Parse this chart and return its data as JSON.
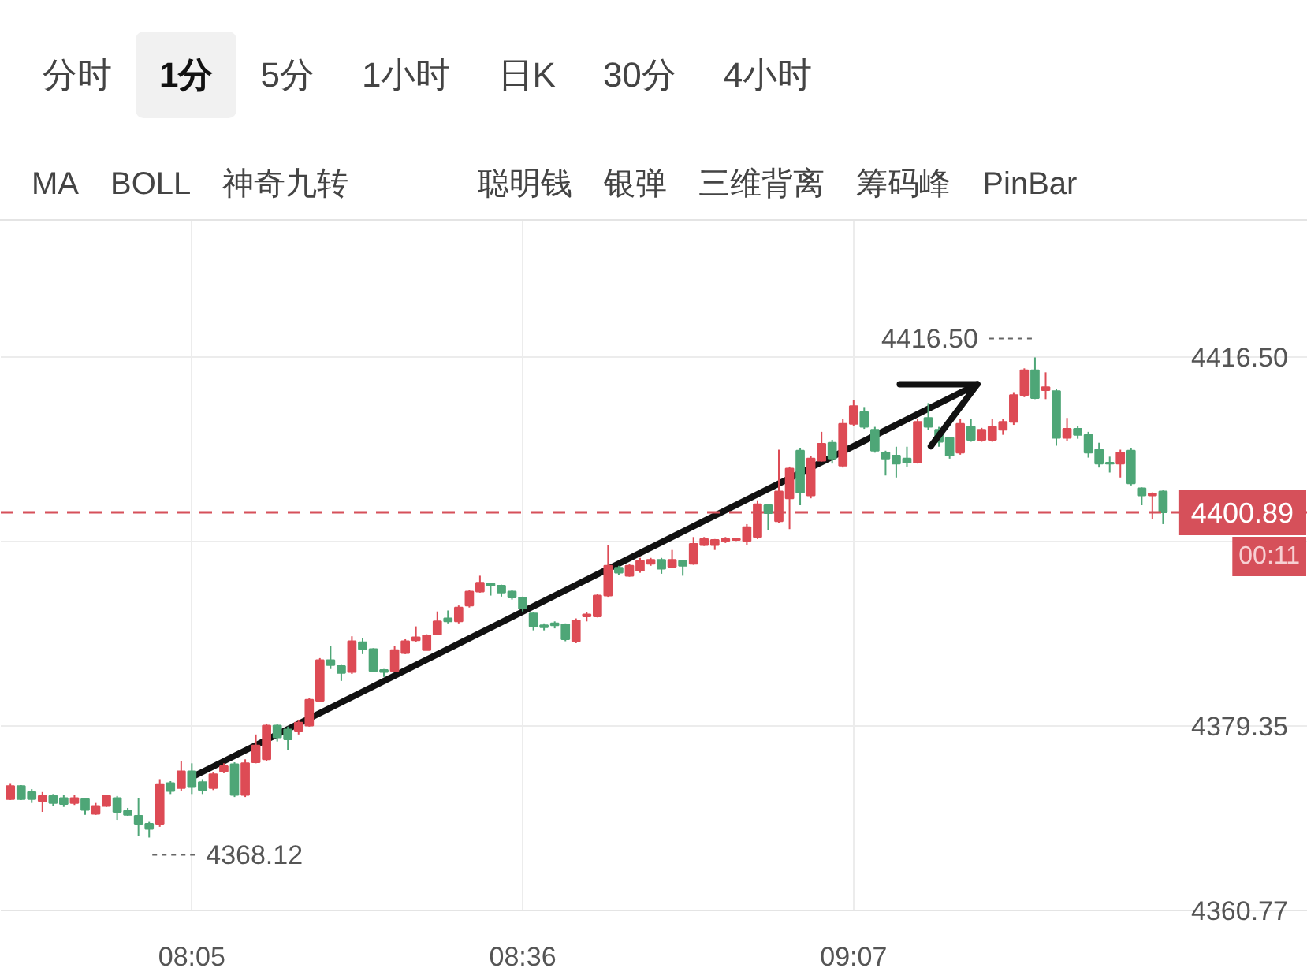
{
  "chart_data": {
    "type": "candlestick",
    "x": [
      7.8,
      7.8167,
      7.8333,
      7.85,
      7.8667,
      7.8833,
      7.9,
      7.9167,
      7.9333,
      7.95,
      7.9667,
      7.9833,
      8.0,
      8.0167,
      8.0333,
      8.05,
      8.0667,
      8.0833,
      8.1,
      8.1167,
      8.1333,
      8.15,
      8.1667,
      8.1833,
      8.2,
      8.2167,
      8.2333,
      8.25,
      8.2667,
      8.2833,
      8.3,
      8.3167,
      8.3333,
      8.35,
      8.3667,
      8.3833,
      8.4,
      8.4167,
      8.4333,
      8.45,
      8.4667,
      8.4833,
      8.5,
      8.5167,
      8.5333,
      8.55,
      8.5667,
      8.5833,
      8.6,
      8.6167,
      8.6333,
      8.65,
      8.6667,
      8.6833,
      8.7,
      8.7167,
      8.7333,
      8.75,
      8.7667,
      8.7833,
      8.8,
      8.8167,
      8.8333,
      8.85,
      8.8667,
      8.8833,
      8.9,
      8.9167,
      8.9333,
      8.95,
      8.9667,
      8.9833,
      9.0,
      9.0167,
      9.0333,
      9.05,
      9.0667,
      9.0833,
      9.1,
      9.1167,
      9.1333,
      9.15,
      9.1667,
      9.1833,
      9.2,
      9.2167,
      9.2333,
      9.25,
      9.2667,
      9.2833,
      9.3,
      9.3167,
      9.3333,
      9.35,
      9.3667,
      9.3833,
      9.4,
      9.4167,
      9.4333,
      9.45,
      9.4667,
      9.4833,
      9.5,
      9.5167,
      9.5333,
      9.55,
      9.5667,
      9.5833,
      9.6
    ],
    "ohlc": [
      [
        4372.0,
        4373.6,
        4371.9,
        4373.3
      ],
      [
        4373.3,
        4373.4,
        4371.9,
        4372.0
      ],
      [
        4372.7,
        4373.0,
        4371.6,
        4372.0
      ],
      [
        4371.8,
        4372.7,
        4370.7,
        4372.3
      ],
      [
        4372.3,
        4372.5,
        4371.3,
        4371.6
      ],
      [
        4372.1,
        4372.4,
        4371.2,
        4371.5
      ],
      [
        4371.6,
        4372.4,
        4371.4,
        4372.1
      ],
      [
        4372.0,
        4372.1,
        4370.4,
        4370.9
      ],
      [
        4370.5,
        4371.6,
        4370.4,
        4371.3
      ],
      [
        4371.3,
        4372.4,
        4371.2,
        4372.3
      ],
      [
        4372.1,
        4372.3,
        4369.9,
        4370.7
      ],
      [
        4370.8,
        4371.1,
        4370.3,
        4370.4
      ],
      [
        4370.3,
        4372.1,
        4368.3,
        4369.5
      ],
      [
        4369.5,
        4369.7,
        4368.12,
        4369.0
      ],
      [
        4369.5,
        4374.0,
        4369.2,
        4373.5
      ],
      [
        4373.6,
        4373.8,
        4372.5,
        4372.8
      ],
      [
        4373.1,
        4375.8,
        4372.8,
        4374.8
      ],
      [
        4374.8,
        4375.6,
        4372.5,
        4373.2
      ],
      [
        4373.7,
        4374.0,
        4372.5,
        4372.9
      ],
      [
        4373.1,
        4374.7,
        4372.9,
        4374.5
      ],
      [
        4374.8,
        4375.6,
        4374.6,
        4375.3
      ],
      [
        4375.5,
        4375.7,
        4372.2,
        4372.4
      ],
      [
        4372.4,
        4376.0,
        4372.2,
        4375.6
      ],
      [
        4375.7,
        4378.5,
        4375.6,
        4377.4
      ],
      [
        4376.0,
        4379.6,
        4375.8,
        4379.4
      ],
      [
        4379.4,
        4379.6,
        4377.8,
        4378.2
      ],
      [
        4379.0,
        4379.3,
        4376.9,
        4378.0
      ],
      [
        4378.8,
        4380.0,
        4378.5,
        4379.7
      ],
      [
        4379.4,
        4382.2,
        4379.3,
        4382.0
      ],
      [
        4381.9,
        4386.2,
        4381.8,
        4386.0
      ],
      [
        4386.0,
        4387.4,
        4385.1,
        4385.5
      ],
      [
        4385.4,
        4385.5,
        4383.9,
        4384.7
      ],
      [
        4384.8,
        4388.4,
        4384.6,
        4387.9
      ],
      [
        4387.8,
        4388.2,
        4386.6,
        4387.1
      ],
      [
        4387.1,
        4387.2,
        4384.8,
        4384.9
      ],
      [
        4385.0,
        4385.1,
        4384.3,
        4384.8
      ],
      [
        4384.9,
        4387.4,
        4384.8,
        4387.0
      ],
      [
        4386.7,
        4388.1,
        4386.6,
        4387.9
      ],
      [
        4388.0,
        4389.4,
        4387.8,
        4388.3
      ],
      [
        4387.0,
        4388.6,
        4387.0,
        4388.5
      ],
      [
        4388.6,
        4390.9,
        4388.5,
        4389.9
      ],
      [
        4390.2,
        4391.0,
        4389.7,
        4389.9
      ],
      [
        4389.9,
        4391.5,
        4389.7,
        4391.3
      ],
      [
        4391.5,
        4393.1,
        4391.3,
        4392.9
      ],
      [
        4392.9,
        4394.5,
        4392.8,
        4393.8
      ],
      [
        4393.7,
        4393.8,
        4392.5,
        4393.5
      ],
      [
        4393.5,
        4393.6,
        4392.4,
        4392.8
      ],
      [
        4392.9,
        4393.1,
        4392.1,
        4392.3
      ],
      [
        4392.3,
        4392.4,
        4390.9,
        4391.2
      ],
      [
        4390.7,
        4390.8,
        4389.0,
        4389.4
      ],
      [
        4389.5,
        4389.7,
        4389.0,
        4389.3
      ],
      [
        4389.7,
        4389.9,
        4389.2,
        4389.5
      ],
      [
        4389.6,
        4389.7,
        4387.9,
        4388.1
      ],
      [
        4387.9,
        4390.2,
        4387.7,
        4390.0
      ],
      [
        4390.4,
        4390.8,
        4389.9,
        4390.6
      ],
      [
        4390.4,
        4392.7,
        4390.3,
        4392.5
      ],
      [
        4392.5,
        4397.6,
        4392.3,
        4395.5
      ],
      [
        4395.3,
        4395.5,
        4394.6,
        4394.8
      ],
      [
        4394.5,
        4395.7,
        4394.4,
        4395.5
      ],
      [
        4395.0,
        4396.3,
        4394.8,
        4396.0
      ],
      [
        4395.7,
        4396.3,
        4395.5,
        4396.1
      ],
      [
        4396.1,
        4396.3,
        4394.7,
        4395.2
      ],
      [
        4395.4,
        4397.1,
        4395.3,
        4396.1
      ],
      [
        4396.0,
        4396.1,
        4394.5,
        4395.5
      ],
      [
        4395.7,
        4398.4,
        4395.6,
        4397.7
      ],
      [
        4397.6,
        4398.4,
        4397.5,
        4398.2
      ],
      [
        4397.6,
        4398.2,
        4397.1,
        4398.1
      ],
      [
        4398.0,
        4398.4,
        4397.8,
        4398.2
      ],
      [
        4398.1,
        4398.3,
        4398.0,
        4398.2
      ],
      [
        4398.0,
        4399.7,
        4397.6,
        4399.4
      ],
      [
        4398.4,
        4402.1,
        4398.2,
        4401.7
      ],
      [
        4401.6,
        4401.7,
        4399.1,
        4400.8
      ],
      [
        4400.0,
        4407.2,
        4399.8,
        4403.0
      ],
      [
        4402.3,
        4405.5,
        4399.2,
        4405.3
      ],
      [
        4407.1,
        4407.4,
        4401.6,
        4402.9
      ],
      [
        4402.6,
        4406.6,
        4402.3,
        4406.3
      ],
      [
        4406.1,
        4409.0,
        4406.0,
        4407.8
      ],
      [
        4407.9,
        4408.2,
        4405.8,
        4406.3
      ],
      [
        4405.6,
        4410.3,
        4405.4,
        4409.8
      ],
      [
        4409.8,
        4412.2,
        4409.6,
        4411.6
      ],
      [
        4411.0,
        4411.5,
        4409.3,
        4409.5
      ],
      [
        4409.2,
        4409.5,
        4406.9,
        4407.1
      ],
      [
        4406.9,
        4407.1,
        4404.6,
        4406.3
      ],
      [
        4406.6,
        4407.5,
        4404.4,
        4405.8
      ],
      [
        4406.3,
        4407.5,
        4405.5,
        4405.9
      ],
      [
        4405.9,
        4410.3,
        4405.8,
        4410.0
      ],
      [
        4410.4,
        4411.9,
        4409.2,
        4409.5
      ],
      [
        4409.2,
        4409.5,
        4407.5,
        4408.0
      ],
      [
        4408.4,
        4408.5,
        4406.3,
        4406.6
      ],
      [
        4406.9,
        4410.3,
        4406.7,
        4409.8
      ],
      [
        4409.5,
        4410.3,
        4408.0,
        4408.2
      ],
      [
        4408.2,
        4409.4,
        4408.0,
        4409.2
      ],
      [
        4408.2,
        4410.3,
        4408.0,
        4409.5
      ],
      [
        4409.2,
        4410.3,
        4408.7,
        4410.0
      ],
      [
        4410.0,
        4413.0,
        4409.7,
        4412.7
      ],
      [
        4412.7,
        4415.4,
        4412.5,
        4415.2
      ],
      [
        4415.2,
        4416.5,
        4412.3,
        4412.4
      ],
      [
        4413.2,
        4415.0,
        4412.3,
        4413.5
      ],
      [
        4413.1,
        4413.3,
        4407.6,
        4408.4
      ],
      [
        4408.4,
        4410.4,
        4408.1,
        4409.3
      ],
      [
        4409.3,
        4409.6,
        4408.3,
        4408.7
      ],
      [
        4408.7,
        4409.0,
        4406.4,
        4406.9
      ],
      [
        4407.2,
        4407.9,
        4405.4,
        4405.8
      ],
      [
        4405.9,
        4406.5,
        4404.9,
        4405.8
      ],
      [
        4405.8,
        4407.2,
        4404.4,
        4406.9
      ],
      [
        4407.1,
        4407.4,
        4403.6,
        4403.8
      ],
      [
        4403.3,
        4403.4,
        4401.6,
        4402.6
      ],
      [
        4402.6,
        4402.9,
        4400.2,
        4402.8
      ],
      [
        4403.0,
        4403.1,
        4399.7,
        4400.89
      ]
    ],
    "colors": [
      "#dd4b55",
      "#4ea677",
      "#4ea677",
      "#dd4b55",
      "#4ea677",
      "#4ea677",
      "#dd4b55",
      "#4ea677",
      "#dd4b55",
      "#dd4b55",
      "#4ea677",
      "#4ea677",
      "#4ea677",
      "#4ea677",
      "#dd4b55",
      "#4ea677",
      "#dd4b55",
      "#4ea677",
      "#4ea677",
      "#dd4b55",
      "#dd4b55",
      "#4ea677",
      "#dd4b55",
      "#dd4b55",
      "#dd4b55",
      "#4ea677",
      "#4ea677",
      "#dd4b55",
      "#dd4b55",
      "#dd4b55",
      "#4ea677",
      "#4ea677",
      "#dd4b55",
      "#4ea677",
      "#4ea677",
      "#4ea677",
      "#dd4b55",
      "#dd4b55",
      "#dd4b55",
      "#dd4b55",
      "#dd4b55",
      "#4ea677",
      "#dd4b55",
      "#dd4b55",
      "#dd4b55",
      "#4ea677",
      "#4ea677",
      "#4ea677",
      "#4ea677",
      "#4ea677",
      "#4ea677",
      "#4ea677",
      "#4ea677",
      "#dd4b55",
      "#dd4b55",
      "#dd4b55",
      "#dd4b55",
      "#4ea677",
      "#dd4b55",
      "#dd4b55",
      "#dd4b55",
      "#4ea677",
      "#dd4b55",
      "#4ea677",
      "#dd4b55",
      "#dd4b55",
      "#dd4b55",
      "#dd4b55",
      "#dd4b55",
      "#dd4b55",
      "#dd4b55",
      "#4ea677",
      "#dd4b55",
      "#dd4b55",
      "#4ea677",
      "#dd4b55",
      "#dd4b55",
      "#4ea677",
      "#dd4b55",
      "#dd4b55",
      "#4ea677",
      "#4ea677",
      "#4ea677",
      "#4ea677",
      "#4ea677",
      "#dd4b55",
      "#4ea677",
      "#4ea677",
      "#4ea677",
      "#dd4b55",
      "#4ea677",
      "#dd4b55",
      "#dd4b55",
      "#dd4b55",
      "#dd4b55",
      "#dd4b55",
      "#4ea677",
      "#dd4b55",
      "#4ea677",
      "#dd4b55",
      "#4ea677",
      "#4ea677",
      "#4ea677",
      "#4ea677",
      "#dd4b55",
      "#4ea677",
      "#4ea677",
      "#dd4b55",
      "#4ea677"
    ],
    "series": [
      {
        "type": "line",
        "x": [
          8.0833,
          9.31
        ],
        "values": [
          4374.2,
          4413.8
        ],
        "color": "#111111"
      }
    ],
    "xlim": [
      7.785,
      9.826
    ],
    "ylim": [
      4360.77,
      4430.2
    ],
    "xticks": [
      {
        "value": 8.0833,
        "label": "08:05"
      },
      {
        "value": 8.6,
        "label": "08:36"
      },
      {
        "value": 9.1167,
        "label": "09:07"
      }
    ],
    "yticks": [
      4360.77,
      4379.35,
      {
        "value": 4397.93,
        "label": null
      },
      {
        "value": 4416.5,
        "label": "4416.50"
      }
    ],
    "grid": true,
    "ref_lines": [
      {
        "axis": "y",
        "value": 4400.89,
        "label": "4400.89",
        "color": "#d6505a",
        "line_style": "dashed"
      }
    ],
    "annotations": [
      "分时",
      "1分",
      "5分",
      "1小时",
      "日K",
      "30分",
      "4小时",
      "MA",
      "BOLL",
      "神奇九转",
      "聪明钱",
      "银弹",
      "三维背离",
      "筹码峰",
      "PinBar",
      "00:11",
      {
        "text": "4416.50",
        "x": 9.4,
        "y": 4416.5
      },
      {
        "text": "4368.12",
        "x": 8.0167,
        "y": 4368.12
      }
    ]
  }
}
